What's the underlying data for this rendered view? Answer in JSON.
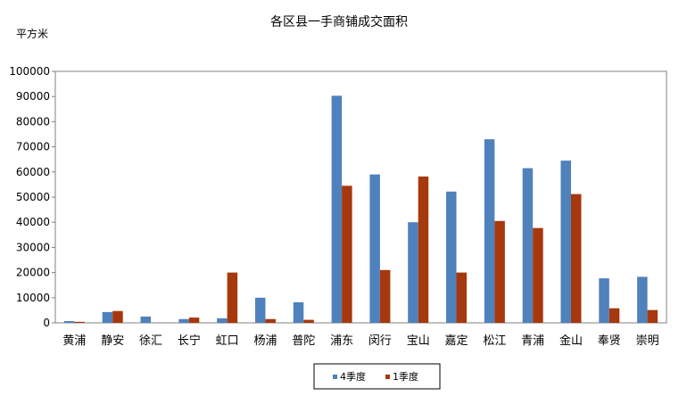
{
  "chart_data": {
    "type": "bar",
    "title": "各区县一手商铺成交面积",
    "ylabel": "平方米",
    "xlabel": "",
    "ylim": [
      0,
      100000
    ],
    "yticks": [
      0,
      10000,
      20000,
      30000,
      40000,
      50000,
      60000,
      70000,
      80000,
      90000,
      100000
    ],
    "grid": false,
    "legend_position": "bottom-center",
    "categories": [
      "黄浦",
      "静安",
      "徐汇",
      "长宁",
      "虹口",
      "杨浦",
      "普陀",
      "浦东",
      "闵行",
      "宝山",
      "嘉定",
      "松江",
      "青浦",
      "金山",
      "奉贤",
      "崇明"
    ],
    "series": [
      {
        "name": "4季度",
        "color": "#4F81BD",
        "values": [
          700,
          4300,
          2500,
          1500,
          1800,
          10000,
          8200,
          90300,
          59000,
          40000,
          52200,
          73000,
          61500,
          64500,
          17700,
          18300
        ]
      },
      {
        "name": "1季度",
        "color": "#A5380C",
        "values": [
          400,
          4700,
          0,
          2100,
          20000,
          1500,
          1200,
          54500,
          21000,
          58200,
          20000,
          40500,
          37700,
          51200,
          5800,
          5100
        ]
      }
    ]
  }
}
